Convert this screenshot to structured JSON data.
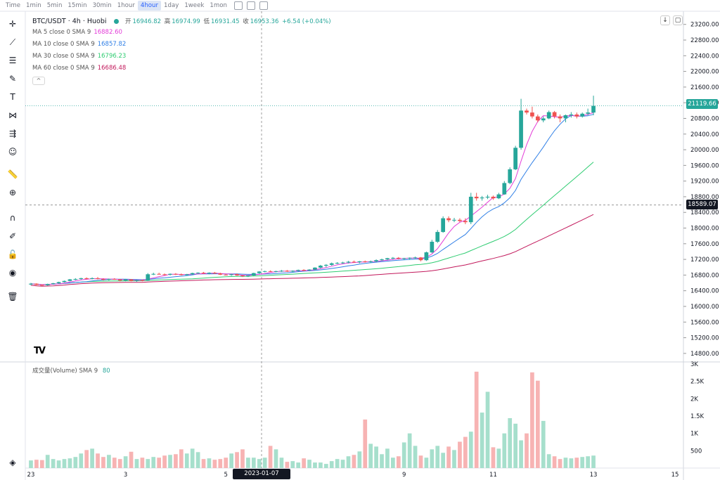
{
  "toolbar": {
    "items": [
      "Time",
      "1min",
      "5min",
      "15min",
      "30min",
      "1hour",
      "4hour",
      "1day",
      "1week",
      "1mon"
    ],
    "active": "4hour"
  },
  "legend": {
    "title": "BTC/USDT · 4h · Huobi",
    "ohlc": {
      "open_label": "开",
      "open": "16946.82",
      "high_label": "高",
      "high": "16974.99",
      "low_label": "低",
      "low": "16931.45",
      "close_label": "收",
      "close": "16953.36",
      "change": "+6.54 (+0.04%)"
    },
    "ma": [
      {
        "label": "MA 5 close 0 SMA 9",
        "value": "16882.60",
        "color": "#e33bd8"
      },
      {
        "label": "MA 10 close 0 SMA 9",
        "value": "16857.82",
        "color": "#2f7fe6"
      },
      {
        "label": "MA 30 close 0 SMA 9",
        "value": "16796.23",
        "color": "#2ecc71"
      },
      {
        "label": "MA 60 close 0 SMA 9",
        "value": "16686.48",
        "color": "#c2185b"
      }
    ],
    "collapse": "^",
    "volume_label": "成交量(Volume) SMA 9",
    "volume_value": "80"
  },
  "price_badges": {
    "current": "21119.66",
    "crosshair": "18589.07"
  },
  "crosshair_date": "2023-01-07　08:00",
  "logo": "TV",
  "colors": {
    "up": "#26a69a",
    "down": "#ef5350",
    "up_vol": "#a6dfcc",
    "down_vol": "#f7b3b3",
    "ma5": "#e33bd8",
    "ma10": "#2f7fe6",
    "ma30": "#2ecc71",
    "ma60": "#c2185b"
  },
  "icons": [
    "crosshair-icon",
    "trendline-icon",
    "fib-icon",
    "brush-icon",
    "text-icon",
    "pattern-icon",
    "forecast-icon",
    "emoji-icon",
    "ruler-icon",
    "zoom-in-icon",
    "magnet-icon",
    "lock-drawing-icon",
    "lock-icon",
    "eye-icon",
    "trash-icon",
    "layers-icon"
  ],
  "chart_data": {
    "type": "candlestick",
    "price_axis_ticks": [
      23200,
      22800,
      22400,
      22000,
      21600,
      21200,
      20800,
      20400,
      20000,
      19600,
      19200,
      18800,
      18400,
      18000,
      17600,
      17200,
      16800,
      16400,
      16000,
      15600,
      15200,
      14800
    ],
    "price_range": [
      14600,
      23500
    ],
    "volume_axis_ticks": [
      "3K",
      "2.5K",
      "2K",
      "1.5K",
      "1K",
      "500"
    ],
    "volume_range": [
      0,
      3000
    ],
    "x_ticks": [
      "23",
      "3",
      "5",
      "9",
      "11",
      "13",
      "15"
    ],
    "candles": [
      [
        16560,
        16600,
        16540,
        16580
      ],
      [
        16580,
        16590,
        16540,
        16550
      ],
      [
        16550,
        16560,
        16520,
        16540
      ],
      [
        16540,
        16580,
        16530,
        16570
      ],
      [
        16570,
        16600,
        16560,
        16590
      ],
      [
        16590,
        16630,
        16580,
        16620
      ],
      [
        16620,
        16660,
        16610,
        16650
      ],
      [
        16650,
        16700,
        16640,
        16690
      ],
      [
        16690,
        16720,
        16670,
        16700
      ],
      [
        16700,
        16730,
        16680,
        16720
      ],
      [
        16720,
        16740,
        16690,
        16700
      ],
      [
        16700,
        16740,
        16690,
        16720
      ],
      [
        16720,
        16750,
        16690,
        16700
      ],
      [
        16700,
        16720,
        16660,
        16680
      ],
      [
        16680,
        16710,
        16660,
        16700
      ],
      [
        16700,
        16720,
        16680,
        16690
      ],
      [
        16690,
        16700,
        16640,
        16660
      ],
      [
        16660,
        16700,
        16640,
        16690
      ],
      [
        16690,
        16700,
        16640,
        16650
      ],
      [
        16650,
        16680,
        16630,
        16670
      ],
      [
        16670,
        16690,
        16640,
        16660
      ],
      [
        16660,
        16850,
        16650,
        16820
      ],
      [
        16820,
        16860,
        16800,
        16830
      ],
      [
        16830,
        16860,
        16810,
        16820
      ],
      [
        16820,
        16840,
        16790,
        16810
      ],
      [
        16810,
        16840,
        16790,
        16830
      ],
      [
        16830,
        16850,
        16800,
        16820
      ],
      [
        16820,
        16840,
        16790,
        16800
      ],
      [
        16800,
        16830,
        16780,
        16820
      ],
      [
        16820,
        16860,
        16800,
        16850
      ],
      [
        16850,
        16870,
        16830,
        16860
      ],
      [
        16860,
        16880,
        16830,
        16840
      ],
      [
        16840,
        16870,
        16820,
        16860
      ],
      [
        16860,
        16880,
        16830,
        16840
      ],
      [
        16840,
        16860,
        16800,
        16810
      ],
      [
        16810,
        16830,
        16790,
        16800
      ],
      [
        16800,
        16830,
        16780,
        16820
      ],
      [
        16820,
        16840,
        16780,
        16790
      ],
      [
        16790,
        16800,
        16750,
        16770
      ],
      [
        16770,
        16800,
        16750,
        16790
      ],
      [
        16790,
        16860,
        16780,
        16850
      ],
      [
        16850,
        16900,
        16830,
        16890
      ],
      [
        16890,
        16910,
        16870,
        16900
      ],
      [
        16900,
        16920,
        16880,
        16890
      ],
      [
        16890,
        16910,
        16870,
        16900
      ],
      [
        16900,
        16930,
        16880,
        16910
      ],
      [
        16910,
        16930,
        16880,
        16890
      ],
      [
        16890,
        16920,
        16870,
        16910
      ],
      [
        16910,
        16940,
        16890,
        16930
      ],
      [
        16930,
        16950,
        16900,
        16920
      ],
      [
        16920,
        16950,
        16900,
        16940
      ],
      [
        16940,
        17000,
        16920,
        16990
      ],
      [
        16990,
        17060,
        16970,
        17040
      ],
      [
        17040,
        17080,
        17000,
        17060
      ],
      [
        17060,
        17120,
        17040,
        17100
      ],
      [
        17100,
        17130,
        17080,
        17110
      ],
      [
        17110,
        17140,
        17090,
        17120
      ],
      [
        17120,
        17160,
        17100,
        17140
      ],
      [
        17140,
        17170,
        17110,
        17130
      ],
      [
        17130,
        17160,
        17100,
        17150
      ],
      [
        17150,
        17170,
        17120,
        17140
      ],
      [
        17140,
        17170,
        17110,
        17150
      ],
      [
        17150,
        17200,
        17130,
        17180
      ],
      [
        17180,
        17220,
        17160,
        17200
      ],
      [
        17200,
        17240,
        17180,
        17230
      ],
      [
        17230,
        17260,
        17200,
        17240
      ],
      [
        17240,
        17260,
        17200,
        17220
      ],
      [
        17220,
        17240,
        17190,
        17230
      ],
      [
        17230,
        17250,
        17200,
        17240
      ],
      [
        17240,
        17270,
        17220,
        17250
      ],
      [
        17250,
        17260,
        17150,
        17180
      ],
      [
        17180,
        17400,
        17160,
        17380
      ],
      [
        17380,
        17700,
        17360,
        17650
      ],
      [
        17650,
        17950,
        17620,
        17900
      ],
      [
        17900,
        18300,
        17880,
        18250
      ],
      [
        18250,
        18300,
        18150,
        18200
      ],
      [
        18200,
        18260,
        18150,
        18210
      ],
      [
        18210,
        18250,
        18150,
        18180
      ],
      [
        18180,
        18250,
        18100,
        18150
      ],
      [
        18150,
        18900,
        18100,
        18800
      ],
      [
        18800,
        18900,
        18700,
        18760
      ],
      [
        18760,
        18820,
        18700,
        18780
      ],
      [
        18780,
        18850,
        18740,
        18800
      ],
      [
        18800,
        18830,
        18720,
        18760
      ],
      [
        18760,
        18900,
        18740,
        18860
      ],
      [
        18860,
        19200,
        18850,
        19150
      ],
      [
        19150,
        19550,
        19120,
        19500
      ],
      [
        19500,
        20100,
        19480,
        20050
      ],
      [
        20050,
        21300,
        20000,
        21000
      ],
      [
        21000,
        21050,
        20900,
        20950
      ],
      [
        20950,
        21100,
        20800,
        20850
      ],
      [
        20850,
        20900,
        20700,
        20750
      ],
      [
        20750,
        20850,
        20700,
        20800
      ],
      [
        20800,
        21000,
        20780,
        20960
      ],
      [
        20960,
        20990,
        20800,
        20850
      ],
      [
        20850,
        20900,
        20700,
        20800
      ],
      [
        20800,
        20900,
        20700,
        20880
      ],
      [
        20880,
        20960,
        20820,
        20900
      ],
      [
        20900,
        20950,
        20800,
        20850
      ],
      [
        20850,
        20950,
        20820,
        20920
      ],
      [
        20920,
        21050,
        20880,
        20950
      ],
      [
        20950,
        21380,
        20880,
        21119.66
      ]
    ],
    "volumes": [
      220,
      240,
      230,
      380,
      260,
      220,
      260,
      280,
      320,
      420,
      520,
      560,
      420,
      320,
      380,
      300,
      260,
      340,
      470,
      260,
      300,
      260,
      320,
      300,
      360,
      380,
      400,
      540,
      420,
      560,
      460,
      260,
      280,
      240,
      260,
      300,
      420,
      460,
      540,
      300,
      300,
      260,
      300,
      640,
      540,
      300,
      180,
      200,
      160,
      280,
      240,
      160,
      160,
      120,
      200,
      260,
      240,
      340,
      380,
      480,
      1400,
      700,
      620,
      400,
      560,
      300,
      340,
      740,
      1000,
      640,
      360,
      300,
      540,
      640,
      440,
      620,
      520,
      760,
      900,
      1050,
      2780,
      1600,
      2200,
      600,
      560,
      1000,
      1440,
      1280,
      800,
      1000,
      2760,
      2520,
      1360,
      400,
      340,
      260,
      300,
      280,
      300,
      320,
      340,
      360
    ]
  }
}
